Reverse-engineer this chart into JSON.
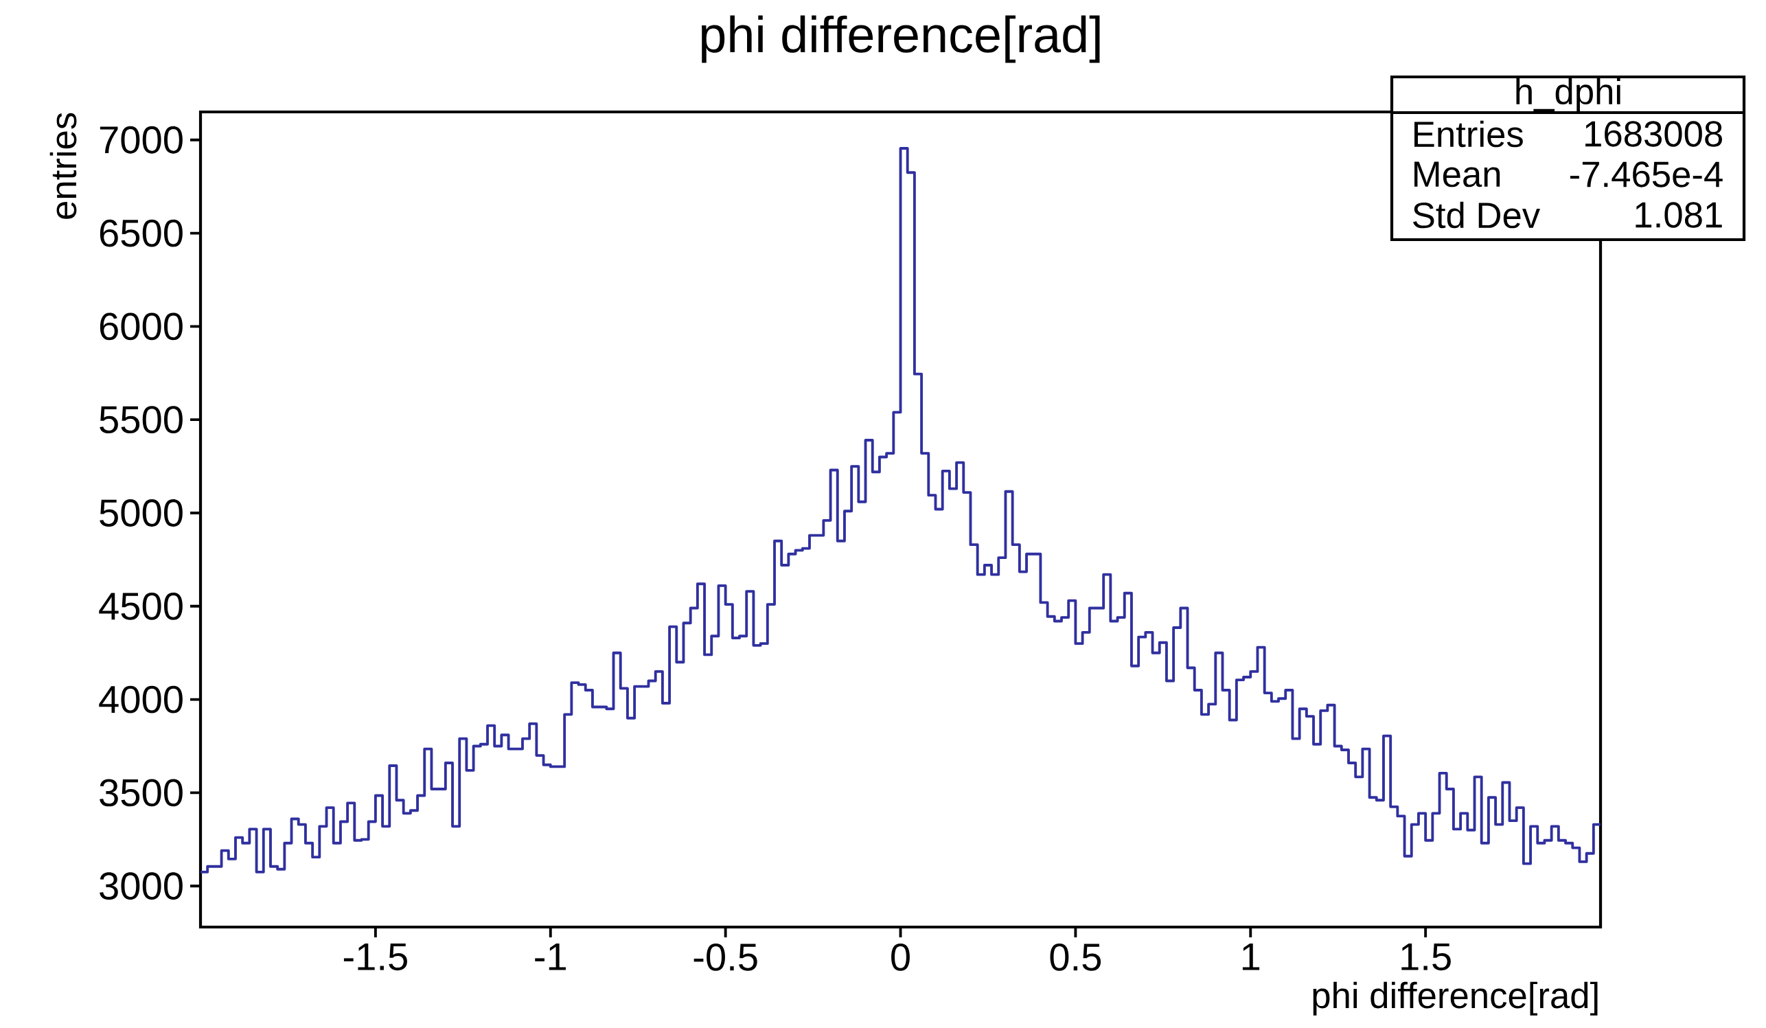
{
  "chart_data": {
    "type": "histogram",
    "title": "phi difference[rad]",
    "xlabel": "phi difference[rad]",
    "ylabel": "entries",
    "color": "#3030a0",
    "bins": [
      -2,
      -1.98,
      -1.96,
      -1.94,
      -1.92,
      -1.9,
      -1.88,
      -1.86,
      -1.84,
      -1.82,
      -1.8,
      -1.78,
      -1.76,
      -1.74,
      -1.72,
      -1.7,
      -1.68,
      -1.66,
      -1.64,
      -1.62,
      -1.6,
      -1.58,
      -1.56,
      -1.54,
      -1.52,
      -1.5,
      -1.48,
      -1.46,
      -1.44,
      -1.42,
      -1.4,
      -1.38,
      -1.36,
      -1.34,
      -1.32,
      -1.3,
      -1.28,
      -1.26,
      -1.24,
      -1.22,
      -1.2,
      -1.18,
      -1.16,
      -1.14,
      -1.12,
      -1.1,
      -1.08,
      -1.06,
      -1.04,
      -1.02,
      -1,
      -0.98,
      -0.96,
      -0.94,
      -0.92,
      -0.9,
      -0.88,
      -0.86,
      -0.84,
      -0.82,
      -0.8,
      -0.78,
      -0.76,
      -0.74,
      -0.72,
      -0.7,
      -0.68,
      -0.66,
      -0.64,
      -0.62,
      -0.6,
      -0.58,
      -0.56,
      -0.54,
      -0.52,
      -0.5,
      -0.48,
      -0.46,
      -0.44,
      -0.42,
      -0.4,
      -0.38,
      -0.36,
      -0.34,
      -0.32,
      -0.3,
      -0.28,
      -0.26,
      -0.24,
      -0.22,
      -0.2,
      -0.18,
      -0.16,
      -0.14,
      -0.12,
      -0.1,
      -0.08,
      -0.06,
      -0.04,
      -0.02,
      0,
      0.02,
      0.04,
      0.06,
      0.08,
      0.1,
      0.12,
      0.14,
      0.16,
      0.18,
      0.2,
      0.22,
      0.24,
      0.26,
      0.28,
      0.3,
      0.32,
      0.34,
      0.36,
      0.38,
      0.4,
      0.42,
      0.44,
      0.46,
      0.48,
      0.5,
      0.52,
      0.54,
      0.56,
      0.58,
      0.6,
      0.62,
      0.64,
      0.66,
      0.68,
      0.7,
      0.72,
      0.74,
      0.76,
      0.78,
      0.8,
      0.82,
      0.84,
      0.86,
      0.88,
      0.9,
      0.92,
      0.94,
      0.96,
      0.98,
      1,
      1.02,
      1.04,
      1.06,
      1.08,
      1.1,
      1.12,
      1.14,
      1.16,
      1.18,
      1.2,
      1.22,
      1.24,
      1.26,
      1.28,
      1.3,
      1.32,
      1.34,
      1.36,
      1.38,
      1.4,
      1.42,
      1.44,
      1.46,
      1.48,
      1.5,
      1.52,
      1.54,
      1.56,
      1.58,
      1.6,
      1.62,
      1.64,
      1.66,
      1.68,
      1.7,
      1.72,
      1.74,
      1.76,
      1.78,
      1.8,
      1.82,
      1.84,
      1.86,
      1.88,
      1.9,
      1.92,
      1.94,
      1.96,
      1.98,
      2
    ],
    "values": [
      3075,
      3105,
      3105,
      3190,
      3145,
      3260,
      3230,
      3305,
      3075,
      3305,
      3105,
      3090,
      3230,
      3360,
      3330,
      3230,
      3155,
      3320,
      3420,
      3230,
      3345,
      3445,
      3245,
      3250,
      3345,
      3485,
      3320,
      3645,
      3460,
      3390,
      3405,
      3485,
      3735,
      3520,
      3520,
      3660,
      3320,
      3790,
      3620,
      3750,
      3760,
      3860,
      3750,
      3810,
      3735,
      3735,
      3790,
      3870,
      3700,
      3650,
      3640,
      3640,
      3920,
      4090,
      4080,
      4050,
      3960,
      3960,
      3950,
      4250,
      4060,
      3900,
      4070,
      4070,
      4100,
      4150,
      3980,
      4390,
      4200,
      4410,
      4490,
      4620,
      4240,
      4340,
      4610,
      4510,
      4330,
      4340,
      4580,
      4290,
      4300,
      4510,
      4850,
      4720,
      4780,
      4800,
      4810,
      4880,
      4880,
      4960,
      5230,
      4850,
      5010,
      5250,
      5060,
      5390,
      5220,
      5300,
      5320,
      5540,
      6955,
      6825,
      5745,
      5320,
      5095,
      5020,
      5225,
      5130,
      5270,
      5110,
      4830,
      4670,
      4720,
      4670,
      4760,
      5115,
      4830,
      4685,
      4780,
      4780,
      4520,
      4445,
      4420,
      4440,
      4530,
      4300,
      4360,
      4490,
      4490,
      4670,
      4420,
      4440,
      4570,
      4180,
      4335,
      4360,
      4250,
      4305,
      4100,
      4385,
      4490,
      4170,
      4050,
      3920,
      3975,
      4250,
      4050,
      3890,
      4105,
      4120,
      4150,
      4280,
      4035,
      3990,
      4005,
      4050,
      3790,
      3950,
      3910,
      3760,
      3940,
      3970,
      3750,
      3730,
      3660,
      3585,
      3735,
      3475,
      3460,
      3805,
      3425,
      3375,
      3160,
      3330,
      3390,
      3245,
      3390,
      3605,
      3520,
      3305,
      3390,
      3300,
      3585,
      3230,
      3475,
      3330,
      3555,
      3350,
      3420,
      3120,
      3320,
      3230,
      3245,
      3320,
      3245,
      3230,
      3205,
      3130,
      3175,
      3330
    ],
    "xlim": [
      -2,
      2
    ],
    "ylim": [
      2780,
      7150
    ],
    "xticks": [
      -1.5,
      -1,
      -0.5,
      0,
      0.5,
      1,
      1.5
    ],
    "yticks": [
      3000,
      3500,
      4000,
      4500,
      5000,
      5500,
      6000,
      6500,
      7000
    ],
    "annotations": [
      "h_dphi",
      "Entries",
      "1683008",
      "Mean",
      "-7.465e-4",
      "Std Dev",
      "1.081"
    ]
  }
}
